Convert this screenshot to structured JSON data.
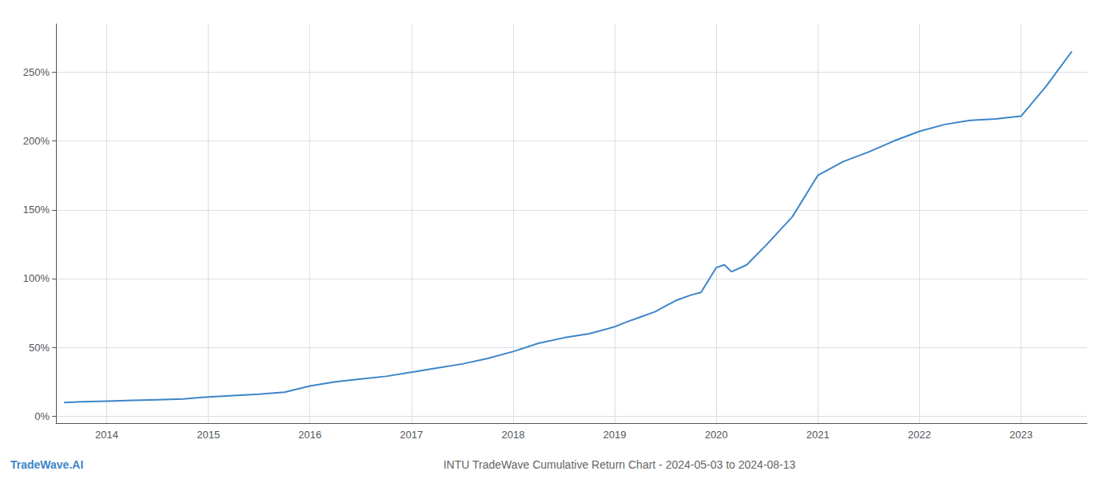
{
  "chart_data": {
    "type": "line",
    "title": "INTU TradeWave Cumulative Return Chart - 2024-05-03 to 2024-08-13",
    "annotations": [
      "TradeWave.AI"
    ],
    "x": [
      2013.58,
      2013.75,
      2014.0,
      2014.25,
      2014.5,
      2014.75,
      2015.0,
      2015.25,
      2015.5,
      2015.75,
      2016.0,
      2016.25,
      2016.5,
      2016.75,
      2017.0,
      2017.25,
      2017.5,
      2017.75,
      2018.0,
      2018.25,
      2018.5,
      2018.75,
      2019.0,
      2019.1,
      2019.25,
      2019.4,
      2019.5,
      2019.6,
      2019.75,
      2019.85,
      2020.0,
      2020.08,
      2020.15,
      2020.3,
      2020.5,
      2020.75,
      2021.0,
      2021.25,
      2021.5,
      2021.75,
      2022.0,
      2022.25,
      2022.5,
      2022.75,
      2023.0,
      2023.25,
      2023.5
    ],
    "values": [
      10,
      10.5,
      11,
      11.5,
      12,
      12.5,
      14,
      15,
      16,
      17.5,
      22,
      25,
      27,
      29,
      32,
      35,
      38,
      42,
      47,
      53,
      57,
      60,
      65,
      68,
      72,
      76,
      80,
      84,
      88,
      90,
      108,
      110,
      105,
      110,
      125,
      145,
      175,
      185,
      192,
      200,
      207,
      212,
      215,
      216,
      218,
      240,
      265
    ],
    "color": "#3d85c8",
    "xlim": [
      2013.5,
      2023.65
    ],
    "xticks": [
      2014,
      2015,
      2016,
      2017,
      2018,
      2019,
      2020,
      2021,
      2022,
      2023
    ],
    "ylim": [
      -5,
      285
    ],
    "yticks": [
      {
        "value": 0,
        "label": "0%"
      },
      {
        "value": 50,
        "label": "50%"
      },
      {
        "value": 100,
        "label": "100%"
      },
      {
        "value": 150,
        "label": "150%"
      },
      {
        "value": 200,
        "label": "200%"
      },
      {
        "value": 250,
        "label": "250%"
      }
    ],
    "grid": true
  }
}
